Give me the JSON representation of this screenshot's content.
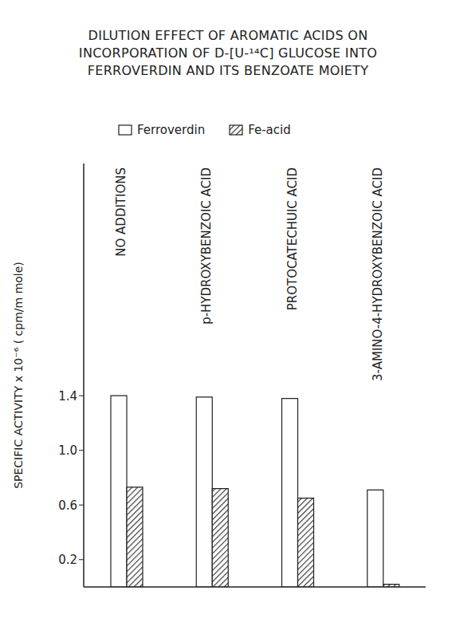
{
  "chart_data": {
    "type": "bar",
    "title": [
      "DILUTION EFFECT OF AROMATIC ACIDS ON",
      "INCORPORATION OF D-[U-¹⁴C] GLUCOSE INTO",
      "FERROVERDIN AND ITS BENZOATE MOIETY"
    ],
    "y_label": "SPECIFIC ACTIVITY x 10⁻⁶ ( cpm/m mole)",
    "categories": [
      "NO ADDITIONS",
      "p-HYDROXYBENZOIC ACID",
      "PROTOCATECHUIC ACID",
      "3-AMINO-4-HYDROXYBENZOIC ACID"
    ],
    "series": [
      {
        "name": "Ferroverdin",
        "color": "#ffffff",
        "values": [
          1.4,
          1.39,
          1.38,
          0.71
        ]
      },
      {
        "name": "Fe-acid",
        "color": "#444444",
        "values": [
          0.73,
          0.72,
          0.65,
          0.02
        ]
      }
    ],
    "ylim": [
      0,
      3.1
    ],
    "yticks": [
      0.2,
      0.6,
      {
        "value": 1.0,
        "label": "1.0"
      },
      1.4
    ],
    "grid": false,
    "legend": "top"
  }
}
